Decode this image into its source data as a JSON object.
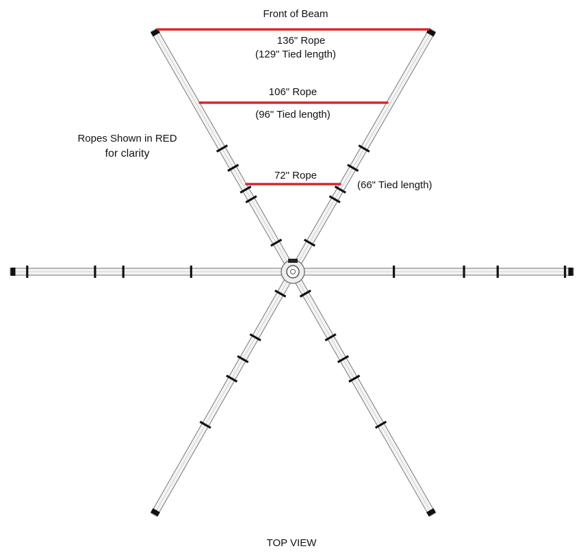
{
  "labels": {
    "front": "Front of Beam",
    "note_line1": "Ropes Shown in RED",
    "note_line2": "for clarity",
    "view": "TOP VIEW"
  },
  "ropes": [
    {
      "name": "136\" Rope",
      "tied": "(129\" Tied length)"
    },
    {
      "name": "106\" Rope",
      "tied": "(96\" Tied length)"
    },
    {
      "name": "72\" Rope",
      "tied": "(66\" Tied length)"
    }
  ],
  "colors": {
    "rope": "#d8262b",
    "pole_fill": "#f4f4f4",
    "pole_edge": "#8a8a8a",
    "band": "#111111"
  }
}
